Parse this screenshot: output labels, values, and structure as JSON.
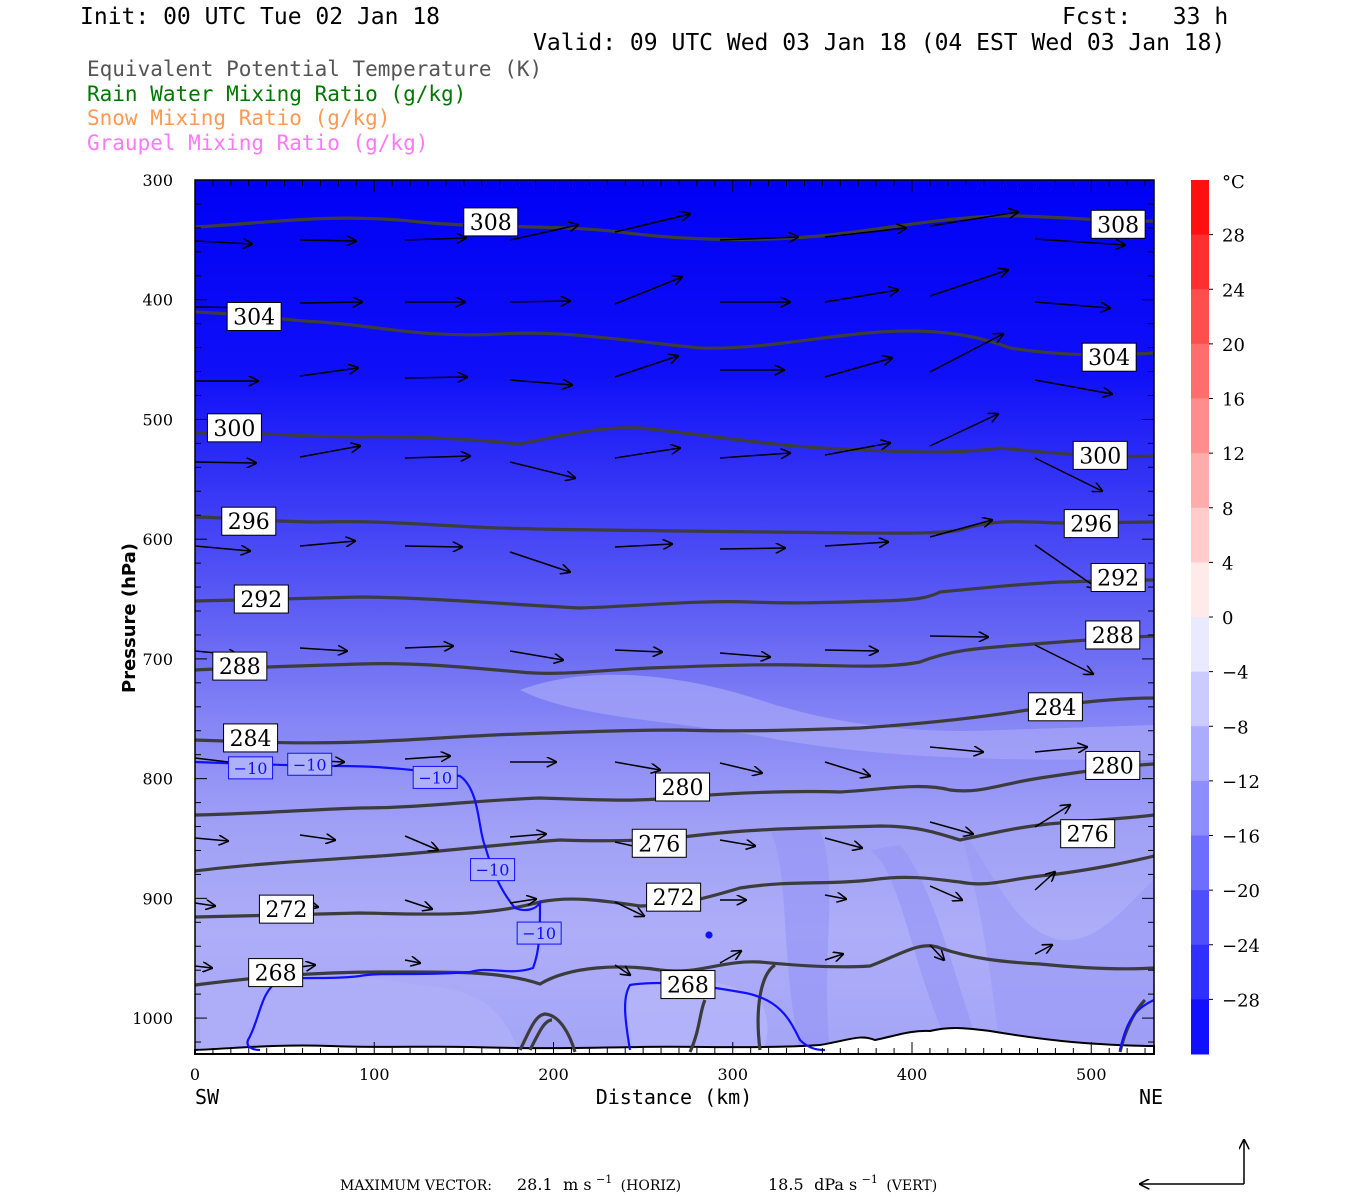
{
  "header": {
    "init": "Init: 00 UTC Tue 02 Jan 18",
    "fcst": "Fcst:   33 h",
    "valid": "Valid: 09 UTC Wed 03 Jan 18 (04 EST Wed 03 Jan 18)"
  },
  "legend": [
    {
      "label": "Equivalent Potential Temperature (K)",
      "color": "#555555"
    },
    {
      "label": "Rain Water Mixing Ratio (g/kg)",
      "color": "#007700"
    },
    {
      "label": "Snow Mixing Ratio (g/kg)",
      "color": "#ff9955"
    },
    {
      "label": "Graupel Mixing Ratio (g/kg)",
      "color": "#ff77ff"
    }
  ],
  "chart_data": {
    "type": "cross-section",
    "xlabel": "Distance (km)",
    "ylabel": "Pressure (hPa)",
    "xlim": [
      0,
      535
    ],
    "ylim": [
      1030,
      300
    ],
    "x_ticks": [
      0,
      100,
      200,
      300,
      400,
      500
    ],
    "y_ticks": [
      300,
      400,
      500,
      600,
      700,
      800,
      900,
      1000
    ],
    "x_end_labels": {
      "left": "SW",
      "right": "NE"
    },
    "shading_variable_unit": "°C",
    "colorbar": {
      "unit": "°C",
      "labels": [
        "28",
        "24",
        "20",
        "16",
        "12",
        "8",
        "4",
        "0",
        "−4",
        "−8",
        "−12",
        "−16",
        "−20",
        "−24",
        "−28"
      ],
      "min": -32,
      "max": 32,
      "step": 4
    },
    "theta_e_labels": [
      {
        "value": "308",
        "x": 165,
        "p": 335
      },
      {
        "value": "308",
        "x": 515,
        "p": 337
      },
      {
        "value": "304",
        "x": 33,
        "p": 414
      },
      {
        "value": "304",
        "x": 510,
        "p": 448
      },
      {
        "value": "300",
        "x": 22,
        "p": 507
      },
      {
        "value": "300",
        "x": 505,
        "p": 530
      },
      {
        "value": "296",
        "x": 30,
        "p": 585
      },
      {
        "value": "296",
        "x": 500,
        "p": 587
      },
      {
        "value": "292",
        "x": 37,
        "p": 650
      },
      {
        "value": "292",
        "x": 515,
        "p": 632
      },
      {
        "value": "288",
        "x": 25,
        "p": 706
      },
      {
        "value": "288",
        "x": 512,
        "p": 680
      },
      {
        "value": "284",
        "x": 31,
        "p": 766
      },
      {
        "value": "284",
        "x": 480,
        "p": 740
      },
      {
        "value": "280",
        "x": 272,
        "p": 807
      },
      {
        "value": "280",
        "x": 512,
        "p": 789
      },
      {
        "value": "276",
        "x": 259,
        "p": 854
      },
      {
        "value": "276",
        "x": 498,
        "p": 846
      },
      {
        "value": "272",
        "x": 51,
        "p": 909
      },
      {
        "value": "272",
        "x": 267,
        "p": 899
      },
      {
        "value": "268",
        "x": 45,
        "p": 962
      },
      {
        "value": "268",
        "x": 275,
        "p": 972
      }
    ],
    "temperature_labels": [
      {
        "value": "−10",
        "x": 31,
        "p": 791
      },
      {
        "value": "−10",
        "x": 64,
        "p": 788
      },
      {
        "value": "−10",
        "x": 134,
        "p": 799
      },
      {
        "value": "−10",
        "x": 166,
        "p": 876
      },
      {
        "value": "−10",
        "x": 192,
        "p": 929
      }
    ],
    "footer": {
      "label": "MAXIMUM VECTOR:",
      "horiz_value": "28.1",
      "horiz_unit": "m s",
      "horiz_exp": "−1",
      "horiz_tag": "(HORIZ)",
      "vert_value": "18.5",
      "vert_unit": "dPa s",
      "vert_exp": "−1",
      "vert_tag": "(VERT)"
    }
  }
}
